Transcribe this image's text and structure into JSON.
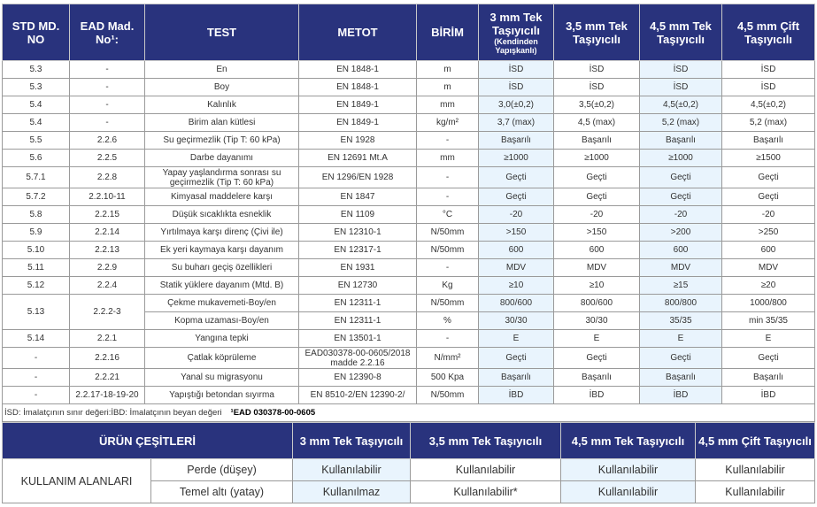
{
  "spec_table": {
    "headers": [
      "STD MD. NO",
      "EAD Mad. No¹:",
      "TEST",
      "METOT",
      "BİRİM",
      "3 mm Tek Taşıyıcılı",
      "3,5 mm Tek Taşıyıcılı",
      "4,5 mm Tek Taşıyıcılı",
      "4,5 mm Çift Taşıyıcılı"
    ],
    "header_sub": "(Kendinden Yapışkanlı)",
    "rows": [
      [
        "5.3",
        "-",
        "En",
        "EN 1848-1",
        "m",
        "İSD",
        "İSD",
        "İSD",
        "İSD"
      ],
      [
        "5.3",
        "-",
        "Boy",
        "EN 1848-1",
        "m",
        "İSD",
        "İSD",
        "İSD",
        "İSD"
      ],
      [
        "5.4",
        "-",
        "Kalınlık",
        "EN 1849-1",
        "mm",
        "3,0(±0,2)",
        "3,5(±0,2)",
        "4,5(±0,2)",
        "4,5(±0,2)"
      ],
      [
        "5.4",
        "-",
        "Birim alan kütlesi",
        "EN 1849-1",
        "kg/m²",
        "3,7 (max)",
        "4,5 (max)",
        "5,2 (max)",
        "5,2 (max)"
      ],
      [
        "5.5",
        "2.2.6",
        "Su geçirmezlik (Tip T: 60 kPa)",
        "EN 1928",
        "-",
        "Başarılı",
        "Başarılı",
        "Başarılı",
        "Başarılı"
      ],
      [
        "5.6",
        "2.2.5",
        "Darbe dayanımı",
        "EN 12691 Mt.A",
        "mm",
        "≥1000",
        "≥1000",
        "≥1000",
        "≥1500"
      ],
      [
        "5.7.1",
        "2.2.8",
        "Yapay yaşlandırma sonrası su geçirmezlik (Tip T: 60 kPa)",
        "EN 1296/EN 1928",
        "-",
        "Geçti",
        "Geçti",
        "Geçti",
        "Geçti"
      ],
      [
        "5.7.2",
        "2.2.10-11",
        "Kimyasal maddelere karşı",
        "EN 1847",
        "-",
        "Geçti",
        "Geçti",
        "Geçti",
        "Geçti"
      ],
      [
        "5.8",
        "2.2.15",
        "Düşük sıcaklıkta esneklik",
        "EN 1109",
        "°C",
        "-20",
        "-20",
        "-20",
        "-20"
      ],
      [
        "5.9",
        "2.2.14",
        "Yırtılmaya karşı direnç (Çivi ile)",
        "EN 12310-1",
        "N/50mm",
        ">150",
        ">150",
        ">200",
        ">250"
      ],
      [
        "5.10",
        "2.2.13",
        "Ek yeri kaymaya karşı dayanım",
        "EN 12317-1",
        "N/50mm",
        "600",
        "600",
        "600",
        "600"
      ],
      [
        "5.11",
        "2.2.9",
        "Su buharı geçiş özellikleri",
        "EN 1931",
        "-",
        "MDV",
        "MDV",
        "MDV",
        "MDV"
      ],
      [
        "5.12",
        "2.2.4",
        "Statik yüklere dayanım (Mtd. B)",
        "EN 12730",
        "Kg",
        "≥10",
        "≥10",
        "≥15",
        "≥20"
      ],
      [
        "5.13",
        "2.2.2-3",
        "Çekme mukavemeti-Boy/en",
        "EN 12311-1",
        "N/50mm",
        "800/600",
        "800/600",
        "800/800",
        "1000/800"
      ],
      [
        null,
        null,
        "Kopma uzaması-Boy/en",
        "EN 12311-1",
        "%",
        "30/30",
        "30/30",
        "35/35",
        "min 35/35"
      ],
      [
        "5.14",
        "2.2.1",
        "Yangına tepki",
        "EN 13501-1",
        "-",
        "E",
        "E",
        "E",
        "E"
      ],
      [
        "-",
        "2.2.16",
        "Çatlak köprüleme",
        "EAD030378-00-0605/2018 madde 2.2.16",
        "N/mm²",
        "Geçti",
        "Geçti",
        "Geçti",
        "Geçti"
      ],
      [
        "-",
        "2.2.21",
        "Yanal su migrasyonu",
        "EN 12390-8",
        "500 Kpa",
        "Başarılı",
        "Başarılı",
        "Başarılı",
        "Başarılı"
      ],
      [
        "-",
        "2.2.17-18-19-20",
        "Yapıştığı betondan sıyırma",
        "EN 8510-2/EN 12390-2/",
        "N/50mm",
        "İBD",
        "İBD",
        "İBD",
        "İBD"
      ]
    ],
    "footnote": "İSD: İmalatçının sınır değeri:İBD: İmalatçının beyan değeri",
    "footnote_ref": "¹EAD 030378-00-0605"
  },
  "usage_table": {
    "title": "ÜRÜN ÇEŞİTLERİ",
    "headers": [
      "3 mm Tek Taşıyıcılı",
      "3,5 mm Tek Taşıyıcılı",
      "4,5 mm Tek Taşıyıcılı",
      "4,5 mm Çift Taşıyıcılı"
    ],
    "group_label": "KULLANIM ALANLARI",
    "rows": [
      {
        "label": "Perde (düşey)",
        "values": [
          "Kullanılabilir",
          "Kullanılabilir",
          "Kullanılabilir",
          "Kullanılabilir"
        ]
      },
      {
        "label": "Temel altı (yatay)",
        "values": [
          "Kullanılmaz",
          "Kullanılabilir*",
          "Kullanılabilir",
          "Kullanılabilir"
        ]
      }
    ]
  }
}
